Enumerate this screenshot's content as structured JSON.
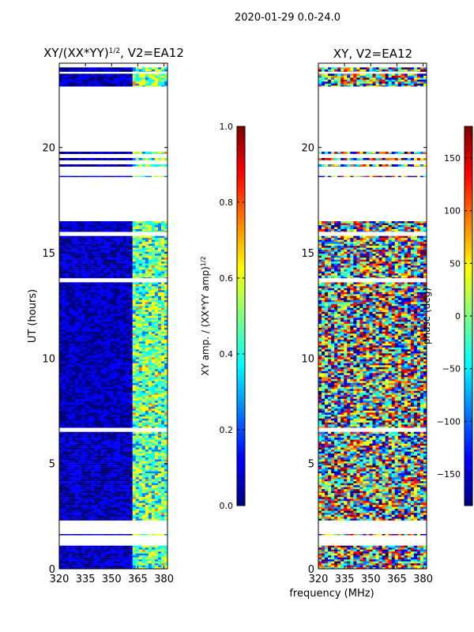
{
  "figure": {
    "suptitle": "2020-01-29 0.0-24.0",
    "xlabel": "frequency (MHz)"
  },
  "colors": {
    "jet": [
      "#00007f",
      "#0000ff",
      "#007fff",
      "#00ffff",
      "#7fff7f",
      "#ffff00",
      "#ff7f00",
      "#ff0000",
      "#7f0000"
    ]
  },
  "chart_data": [
    {
      "type": "heatmap",
      "title_main": "XY/(XX*YY)",
      "title_exp": "1/2",
      "title_tail": ", V2=EA12",
      "xlabel": "",
      "ylabel": "UT (hours)",
      "xlim": [
        320,
        382
      ],
      "ylim": [
        0,
        24
      ],
      "xticks": [
        320,
        335,
        350,
        365,
        380
      ],
      "yticks": [
        0,
        5,
        10,
        15,
        20
      ],
      "colorbar": {
        "label_main": "XY amp. / (XX*YY amp)",
        "label_exp": "1/2",
        "range": [
          0.0,
          1.0
        ],
        "ticks": [
          "0.0",
          "0.2",
          "0.4",
          "0.6",
          "0.8",
          "1.0"
        ]
      },
      "pattern": "mostly low amplitude (dark blue) with elevated values between 361 and 381 MHz",
      "data_intervals_hours": [
        [
          0.0,
          1.1
        ],
        [
          1.6,
          1.65
        ],
        [
          2.3,
          6.5
        ],
        [
          6.7,
          13.6
        ],
        [
          13.8,
          15.8
        ],
        [
          16.0,
          16.5
        ],
        [
          18.6,
          18.65
        ],
        [
          19.1,
          19.2
        ],
        [
          19.4,
          19.5
        ],
        [
          19.7,
          19.8
        ],
        [
          22.9,
          23.5
        ],
        [
          23.6,
          23.8
        ]
      ]
    },
    {
      "type": "heatmap",
      "title_main": "XY, V2=EA12",
      "title_exp": "",
      "title_tail": "",
      "xlabel": "",
      "ylabel": "",
      "xlim": [
        320,
        382
      ],
      "ylim": [
        0,
        24
      ],
      "xticks": [
        320,
        335,
        350,
        365,
        380
      ],
      "yticks": [
        0,
        5,
        10,
        15,
        20
      ],
      "colorbar": {
        "label_main": "phase (deg)",
        "label_exp": "",
        "range": [
          -180,
          180
        ],
        "ticks": [
          "−150",
          "−100",
          "−50",
          "0",
          "50",
          "100",
          "150"
        ]
      },
      "pattern": "phase values spread over the full -180..180 range (noisy)",
      "data_intervals_hours": [
        [
          0.0,
          1.1
        ],
        [
          1.6,
          1.65
        ],
        [
          2.3,
          6.5
        ],
        [
          6.7,
          13.6
        ],
        [
          13.8,
          15.8
        ],
        [
          16.0,
          16.5
        ],
        [
          18.6,
          18.65
        ],
        [
          19.1,
          19.2
        ],
        [
          19.4,
          19.5
        ],
        [
          19.7,
          19.8
        ],
        [
          22.9,
          23.5
        ],
        [
          23.6,
          23.8
        ]
      ]
    }
  ]
}
